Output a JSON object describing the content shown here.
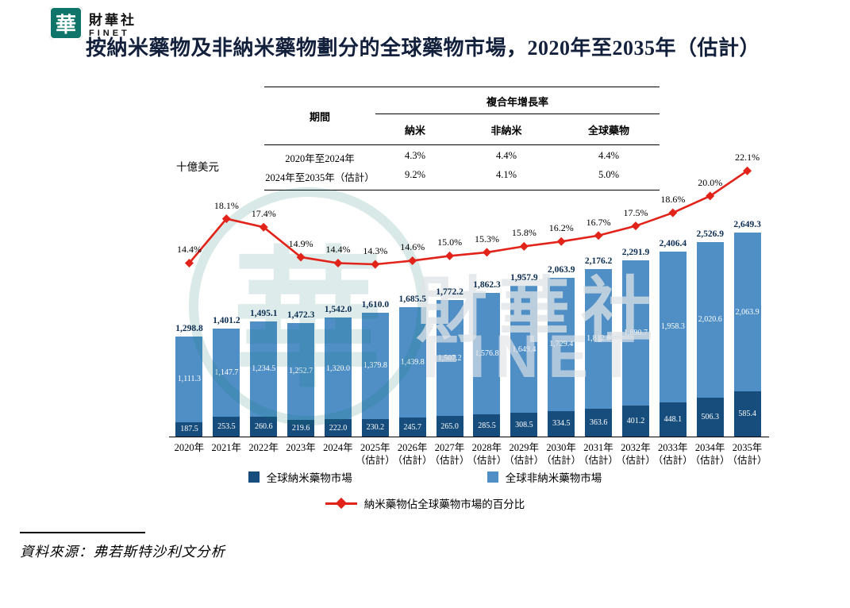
{
  "logo": {
    "mark": "華",
    "name_cn": "財華社",
    "name_en": "FINET"
  },
  "title": "按納米藥物及非納米藥物劃分的全球藥物市場，2020年至2035年（估計）",
  "unit_label": "十億美元",
  "table": {
    "period_header": "期間",
    "cagr_header": "複合年增長率",
    "columns": [
      "納米",
      "非納米",
      "全球藥物"
    ],
    "rows": [
      {
        "period": "2020年至2024年",
        "values": [
          "4.3%",
          "4.4%",
          "4.4%"
        ]
      },
      {
        "period": "2024年至2035年（估計）",
        "values": [
          "9.2%",
          "4.1%",
          "5.0%"
        ]
      }
    ]
  },
  "chart_data": {
    "type": "bar",
    "stacked": true,
    "categories": [
      "2020年",
      "2021年",
      "2022年",
      "2023年",
      "2024年",
      "2025年",
      "2026年",
      "2027年",
      "2028年",
      "2029年",
      "2030年",
      "2031年",
      "2032年",
      "2033年",
      "2034年",
      "2035年"
    ],
    "estimate_label": "（估計）",
    "estimate_from_index": 5,
    "unit": "十億美元",
    "series": [
      {
        "name": "全球納米藥物市場",
        "color": "#174d7c",
        "values": [
          187.5,
          253.5,
          260.6,
          219.6,
          222.0,
          230.2,
          245.7,
          265.0,
          285.5,
          308.5,
          334.5,
          363.6,
          401.2,
          448.1,
          506.3,
          585.4
        ]
      },
      {
        "name": "全球非納米藥物市場",
        "color": "#4f8fc6",
        "values": [
          1111.3,
          1147.7,
          1234.5,
          1252.7,
          1320.0,
          1379.8,
          1439.8,
          1507.2,
          1576.8,
          1649.4,
          1729.4,
          1812.6,
          1890.7,
          1958.3,
          2020.6,
          2063.9
        ]
      }
    ],
    "totals": [
      1298.8,
      1401.2,
      1495.1,
      1472.3,
      1542.0,
      1610.0,
      1685.5,
      1772.2,
      1862.3,
      1957.9,
      2063.9,
      2176.2,
      2291.9,
      2406.4,
      2526.9,
      2649.3
    ],
    "line": {
      "name": "納米藥物佔全球藥物市場的百分比",
      "color": "#e2231a",
      "values_pct": [
        14.4,
        18.1,
        17.4,
        14.9,
        14.4,
        14.3,
        14.6,
        15.0,
        15.3,
        15.8,
        16.2,
        16.7,
        17.5,
        18.6,
        20.0,
        22.1
      ]
    }
  },
  "watermark": {
    "mark": "華",
    "text_cn": "財華社",
    "text_en": "FINET"
  },
  "source": "資料來源：弗若斯特沙利文分析"
}
